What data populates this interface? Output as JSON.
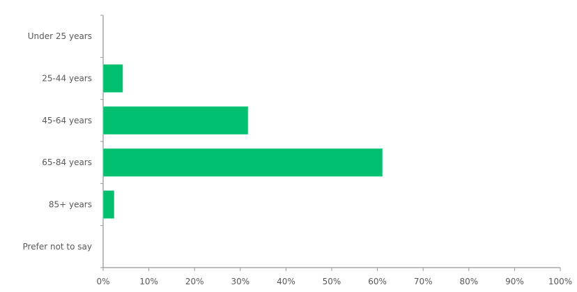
{
  "chart_data": {
    "type": "bar",
    "orientation": "horizontal",
    "categories": [
      "Under 25 years",
      "25-44 years",
      "45-64 years",
      "65-84 years",
      "85+ years",
      "Prefer not to say"
    ],
    "values": [
      0,
      4.3,
      31.7,
      61.1,
      2.4,
      0
    ],
    "unit": "%",
    "xlim": [
      0,
      100
    ],
    "xticks": [
      "0%",
      "10%",
      "20%",
      "30%",
      "40%",
      "50%",
      "60%",
      "70%",
      "80%",
      "90%",
      "100%"
    ],
    "grid": false,
    "bar_color": "#00BF6F",
    "title": "",
    "xlabel": "",
    "ylabel": ""
  }
}
